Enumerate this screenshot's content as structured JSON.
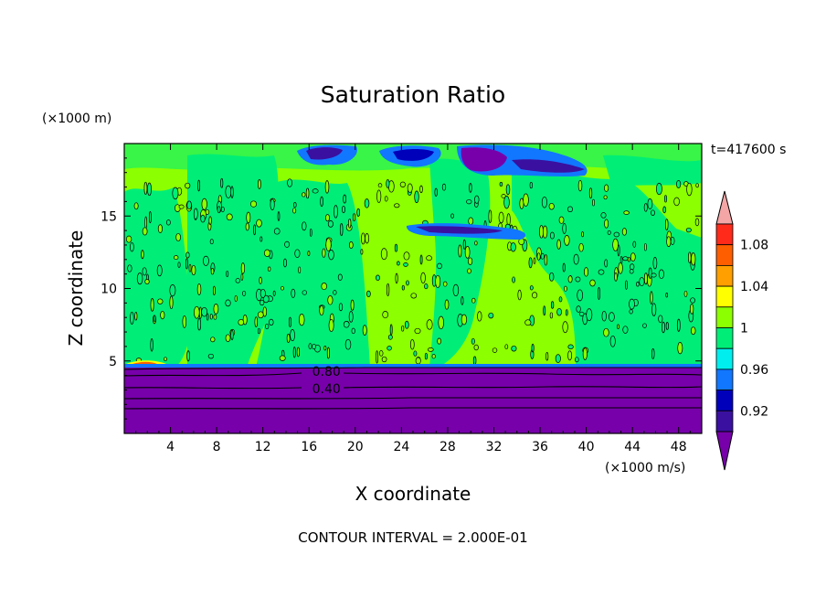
{
  "chart_data": {
    "type": "heatmap",
    "title": "Saturation Ratio",
    "xlabel": "X coordinate",
    "ylabel": "Z coordinate",
    "x_unit": "(×1000 m/s)",
    "y_unit": "(×1000 m)",
    "time_label": "t=417600 s",
    "footer": "CONTOUR INTERVAL = 2.000E-01",
    "xlim": [
      0,
      50
    ],
    "ylim": [
      0,
      20
    ],
    "x_ticks": [
      4,
      8,
      12,
      16,
      20,
      24,
      28,
      32,
      36,
      40,
      44,
      48
    ],
    "y_ticks": [
      5,
      10,
      15
    ],
    "contour_labels": [
      {
        "text": "0.80",
        "x": 17.5,
        "y": 4.3
      },
      {
        "text": "0.40",
        "x": 17.5,
        "y": 3.1
      }
    ],
    "colorbar": {
      "ticks": [
        {
          "label": "1.08",
          "value": 1.08
        },
        {
          "label": "1.04",
          "value": 1.04
        },
        {
          "label": "1",
          "value": 1.0
        },
        {
          "label": "0.96",
          "value": 0.96
        },
        {
          "label": "0.92",
          "value": 0.92
        }
      ],
      "bins": [
        {
          "min": 1.1,
          "max": null,
          "color": "#f4a6a6"
        },
        {
          "min": 1.08,
          "max": 1.1,
          "color": "#ff2a1a"
        },
        {
          "min": 1.06,
          "max": 1.08,
          "color": "#ff5e00"
        },
        {
          "min": 1.04,
          "max": 1.06,
          "color": "#ff9f00"
        },
        {
          "min": 1.02,
          "max": 1.04,
          "color": "#ffff00"
        },
        {
          "min": 1.0,
          "max": 1.02,
          "color": "#8cff00"
        },
        {
          "min": 0.98,
          "max": 1.0,
          "color": "#00ee77"
        },
        {
          "min": 0.96,
          "max": 0.98,
          "color": "#00eeee"
        },
        {
          "min": 0.94,
          "max": 0.96,
          "color": "#1177ff"
        },
        {
          "min": 0.92,
          "max": 0.94,
          "color": "#0000bb"
        },
        {
          "min": 0.9,
          "max": 0.92,
          "color": "#3a10a0"
        },
        {
          "min": null,
          "max": 0.9,
          "color": "#7700aa"
        }
      ]
    }
  }
}
